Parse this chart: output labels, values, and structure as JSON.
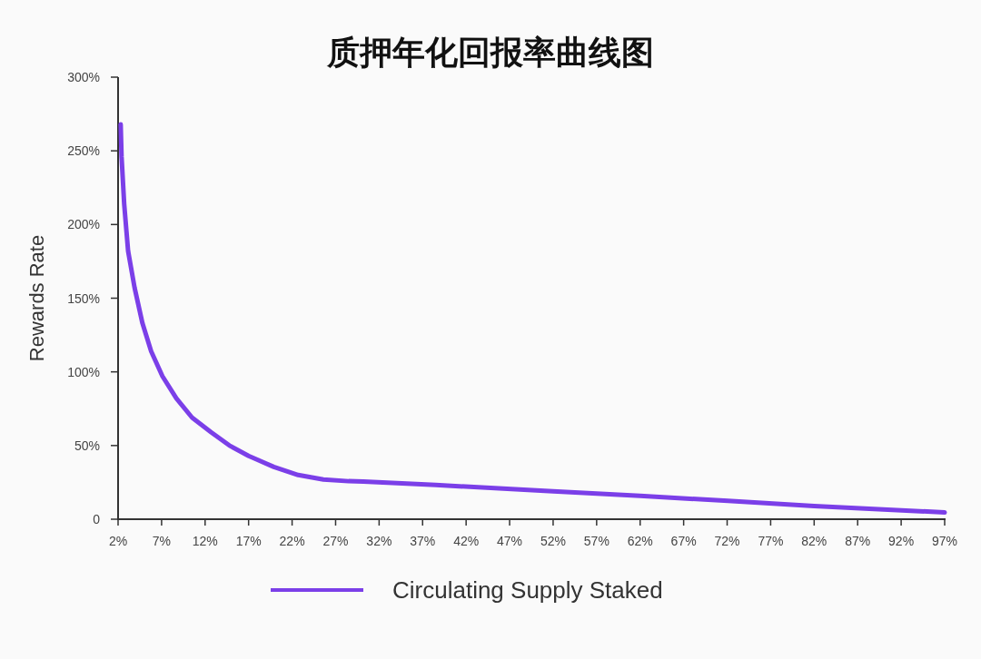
{
  "chart_data": {
    "type": "line",
    "title": "质押年化回报率曲线图",
    "ylabel": "Rewards Rate",
    "xlim": [
      2,
      97
    ],
    "ylim": [
      0,
      300
    ],
    "xticks": [
      {
        "value": 2,
        "label": "2%"
      },
      {
        "value": 7,
        "label": "7%"
      },
      {
        "value": 12,
        "label": "12%"
      },
      {
        "value": 17,
        "label": "17%"
      },
      {
        "value": 22,
        "label": "22%"
      },
      {
        "value": 27,
        "label": "27%"
      },
      {
        "value": 32,
        "label": "32%"
      },
      {
        "value": 37,
        "label": "37%"
      },
      {
        "value": 42,
        "label": "42%"
      },
      {
        "value": 47,
        "label": "47%"
      },
      {
        "value": 52,
        "label": "52%"
      },
      {
        "value": 57,
        "label": "57%"
      },
      {
        "value": 62,
        "label": "62%"
      },
      {
        "value": 67,
        "label": "67%"
      },
      {
        "value": 72,
        "label": "72%"
      },
      {
        "value": 77,
        "label": "77%"
      },
      {
        "value": 82,
        "label": "82%"
      },
      {
        "value": 87,
        "label": "87%"
      },
      {
        "value": 92,
        "label": "92%"
      },
      {
        "value": 97,
        "label": "97%"
      }
    ],
    "yticks": [
      {
        "value": 0,
        "label": "0"
      },
      {
        "value": 50,
        "label": "50%"
      },
      {
        "value": 100,
        "label": "100%"
      },
      {
        "value": 150,
        "label": "150%"
      },
      {
        "value": 200,
        "label": "200%"
      },
      {
        "value": 250,
        "label": "250%"
      },
      {
        "value": 300,
        "label": "300%"
      }
    ],
    "legend": "bottom",
    "series": [
      {
        "name": "Circulating Supply Staked",
        "color": "#7b3fe8",
        "x": [
          2.3,
          2.4,
          2.7,
          3.15,
          3.9,
          4.8,
          5.8,
          7.1,
          8.7,
          10.5,
          12.7,
          14.8,
          17,
          19.9,
          22.7,
          25.6,
          28.5,
          30.2,
          38.5,
          52,
          62,
          72.1,
          82,
          97
        ],
        "values": [
          268,
          246,
          214,
          182,
          157,
          133,
          114,
          97,
          82,
          69,
          59,
          50,
          43,
          35.5,
          30,
          27,
          25.8,
          25.5,
          23.2,
          19,
          15.8,
          12.4,
          9,
          4.6
        ]
      }
    ]
  }
}
